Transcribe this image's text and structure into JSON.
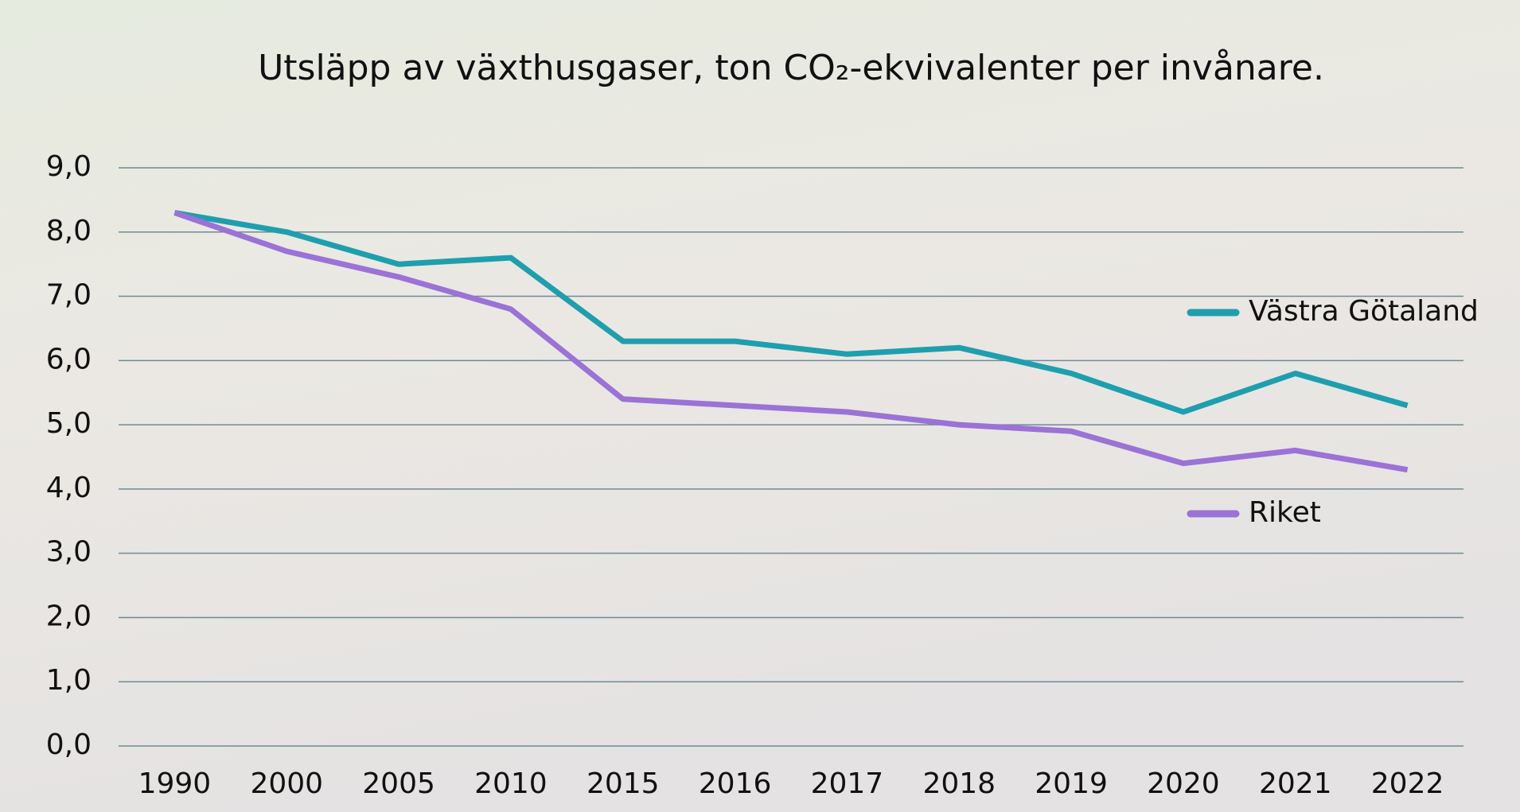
{
  "chart_data": {
    "type": "line",
    "title": "Utsläpp av växthusgaser, ton CO₂-ekvivalenter per invånare.",
    "categories": [
      "1990",
      "2000",
      "2005",
      "2010",
      "2015",
      "2016",
      "2017",
      "2018",
      "2019",
      "2020",
      "2021",
      "2022"
    ],
    "series": [
      {
        "name": "Västra Götaland",
        "color": "#1e9fae",
        "values": [
          8.3,
          8.0,
          7.5,
          7.6,
          6.3,
          6.3,
          6.1,
          6.2,
          5.8,
          5.2,
          5.8,
          5.3
        ]
      },
      {
        "name": "Riket",
        "color": "#9b72d6",
        "values": [
          8.3,
          7.7,
          7.3,
          6.8,
          5.4,
          5.3,
          5.2,
          5.0,
          4.9,
          4.4,
          4.6,
          4.3
        ]
      }
    ],
    "ylim": [
      0,
      9
    ],
    "yticks": [
      {
        "value": 0,
        "label": "0,0"
      },
      {
        "value": 1,
        "label": "1,0"
      },
      {
        "value": 2,
        "label": "2,0"
      },
      {
        "value": 3,
        "label": "3,0"
      },
      {
        "value": 4,
        "label": "4,0"
      },
      {
        "value": 5,
        "label": "5,0"
      },
      {
        "value": 6,
        "label": "6,0"
      },
      {
        "value": 7,
        "label": "7,0"
      },
      {
        "value": 8,
        "label": "8,0"
      },
      {
        "value": 9,
        "label": "9,0"
      }
    ],
    "grid": true
  }
}
